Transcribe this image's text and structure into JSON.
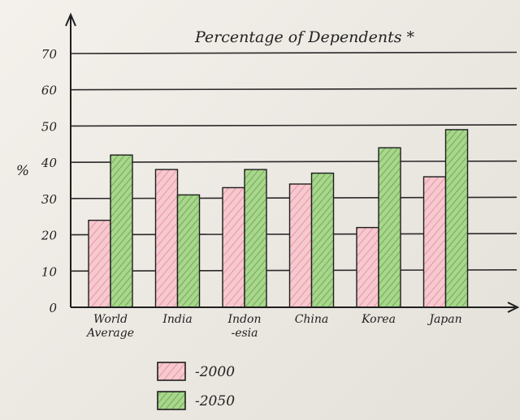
{
  "chart_data": {
    "type": "bar",
    "title": "Percentage of Dependents *",
    "ylabel": "%",
    "xlabel": "",
    "ylim": [
      0,
      70
    ],
    "yticks": [
      0,
      10,
      20,
      30,
      40,
      50,
      60,
      70
    ],
    "grid": true,
    "legend_position": "bottom-left",
    "categories": [
      "World Average",
      "India",
      "Indon -esia",
      "China",
      "Korea",
      "Japan"
    ],
    "category_lines": [
      [
        "World",
        "Average"
      ],
      [
        "India"
      ],
      [
        "Indon",
        "-esia"
      ],
      [
        "China"
      ],
      [
        "Korea"
      ],
      [
        "Japan"
      ]
    ],
    "series": [
      {
        "name": "2000",
        "legend_label": "-2000",
        "values": [
          24,
          38,
          33,
          34,
          22,
          36
        ],
        "color": "#f1b9c2"
      },
      {
        "name": "2050",
        "legend_label": "-2050",
        "values": [
          42,
          31,
          38,
          37,
          44,
          49
        ],
        "color": "#93c87a"
      }
    ],
    "colors": {
      "ink": "#1e1e1e",
      "grid": "#2a2a2a"
    }
  }
}
